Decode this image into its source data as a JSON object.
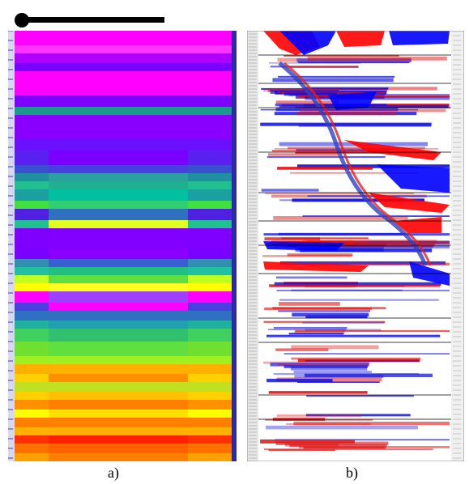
{
  "figure": {
    "scale_bar": {
      "icon": "scale-bar-line-with-dot"
    },
    "panel_a": {
      "caption": "a)",
      "description_colors": [
        "#ff00ff",
        "#8000ff",
        "#00c080",
        "#00ff40",
        "#ffff00",
        "#ff8000",
        "#ff0000"
      ]
    },
    "panel_b": {
      "caption": "b)",
      "colors": {
        "positive": "#ff0000",
        "negative": "#0000ff",
        "zero": "#ffffff"
      }
    }
  }
}
